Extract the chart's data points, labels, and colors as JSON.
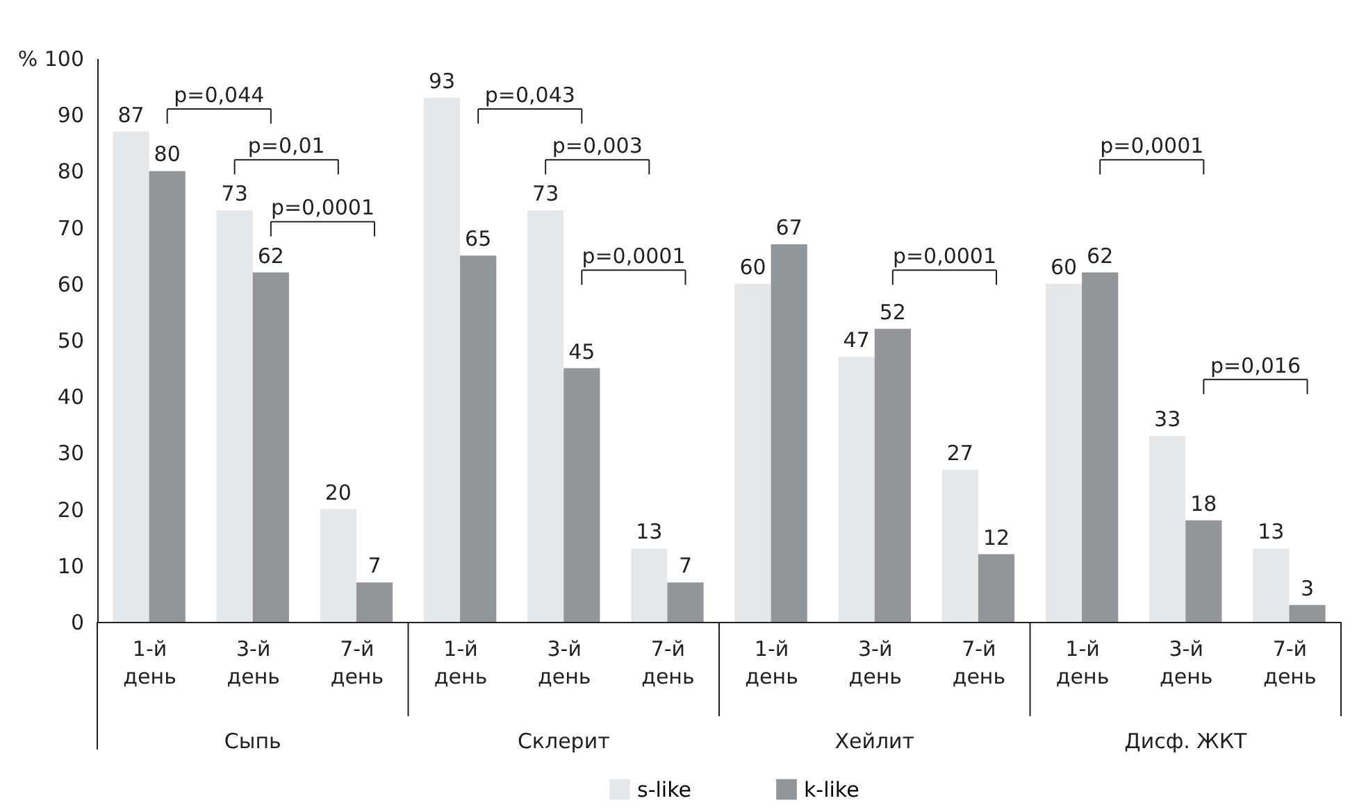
{
  "chart_data": {
    "type": "bar",
    "categories": [
      "1-й день",
      "3-й день",
      "7-й день",
      "1-й день",
      "3-й день",
      "7-й день",
      "1-й день",
      "3-й день",
      "7-й день",
      "1-й день",
      "3-й день",
      "7-й день"
    ],
    "series": [
      {
        "name": "s-like",
        "color": "#e6e7e8",
        "values": [
          87,
          73,
          20,
          93,
          73,
          13,
          60,
          47,
          27,
          60,
          33,
          13
        ]
      },
      {
        "name": "k-like",
        "color": "#939598",
        "values": [
          80,
          62,
          7,
          65,
          45,
          7,
          67,
          52,
          12,
          62,
          18,
          3
        ]
      }
    ],
    "ylim": [
      0,
      100
    ],
    "yticks": [
      0,
      10,
      20,
      30,
      40,
      50,
      60,
      70,
      80,
      90,
      {
        "value": 100,
        "label": "% 100"
      }
    ],
    "data_labels": true,
    "grid": false,
    "legend": "bottom",
    "annotations": [
      "Сыпь",
      "Склерит",
      "Хейлит",
      "Дисф. ЖКТ",
      "p=0,044",
      "p=0,01",
      "p=0,0001",
      "p=0,043",
      "p=0,003",
      "p=0,0001",
      "p=0,0001",
      "p=0,0001",
      "p=0,016"
    ]
  }
}
